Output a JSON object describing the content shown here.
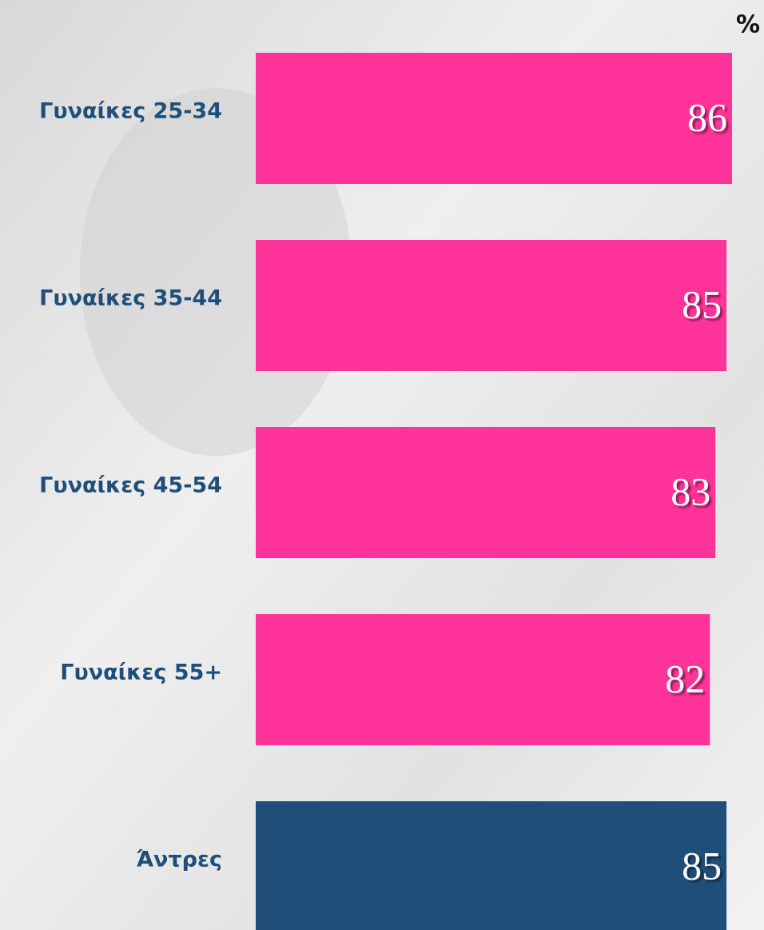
{
  "chart_data": {
    "type": "bar",
    "orientation": "horizontal",
    "unit": "%",
    "categories": [
      "Γυναίκες 25-34",
      "Γυναίκες 35-44",
      "Γυναίκες 45-54",
      "Γυναίκες 55+",
      "Άντρες"
    ],
    "values": [
      86,
      85,
      83,
      82,
      85
    ],
    "colors": [
      "#ff3399",
      "#ff3399",
      "#ff3399",
      "#ff3399",
      "#1f4e79"
    ],
    "xlim": [
      0,
      86
    ]
  }
}
